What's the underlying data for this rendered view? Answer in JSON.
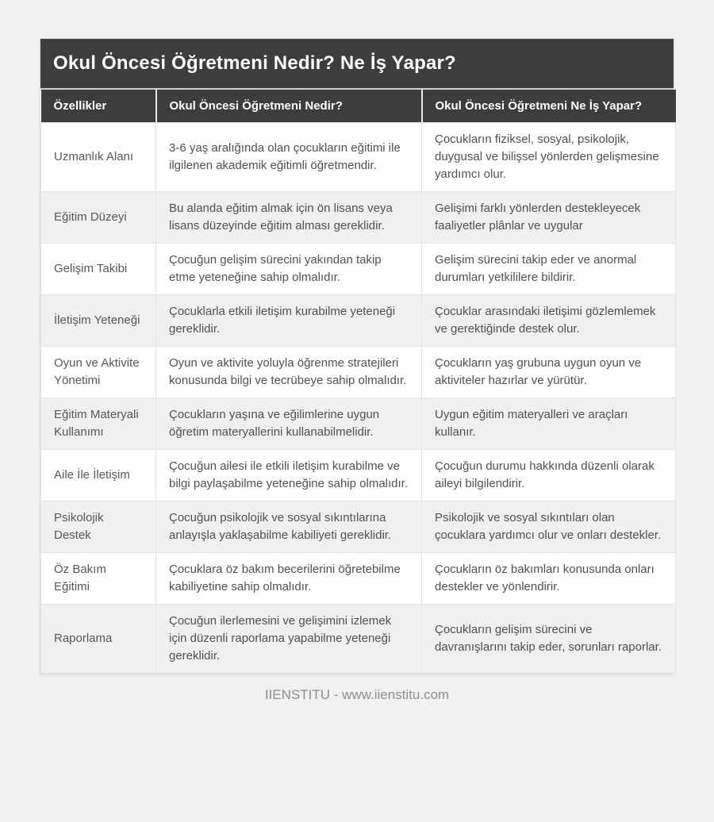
{
  "page": {
    "title": "Okul Öncesi Öğretmeni Nedir? Ne İş Yapar?",
    "footer": "IIENSTITU - www.iienstitu.com"
  },
  "colors": {
    "header_bg": "#3d3d3d",
    "header_text": "#ffffff",
    "row_alt_bg": "#f0f0ee",
    "page_bg": "#f1f1ef",
    "body_text": "#4f5053",
    "border": "#e3e3e1",
    "footer_text": "#8f8f8d"
  },
  "table": {
    "headers": [
      "Özellikler",
      "Okul Öncesi Öğretmeni Nedir?",
      "Okul Öncesi Öğretmeni Ne İş Yapar?"
    ],
    "rows": [
      {
        "feature": "Uzmanlık Alanı",
        "nedir": "3-6 yaş aralığında olan çocukların eğitimi ile ilgilenen akademik eğitimli öğretmendir.",
        "yapar": "Çocukların fiziksel, sosyal, psikolojik, duygusal ve bilişsel yönlerden gelişmesine yardımcı olur."
      },
      {
        "feature": "Eğitim Düzeyi",
        "nedir": "Bu alanda eğitim almak için ön lisans veya lisans düzeyinde eğitim alması gereklidir.",
        "yapar": "Gelişimi farklı yönlerden destekleyecek faaliyetler plânlar ve uygular"
      },
      {
        "feature": "Gelişim Takibi",
        "nedir": "Çocuğun gelişim sürecini yakından takip etme yeteneğine sahip olmalıdır.",
        "yapar": "Gelişim sürecini takip eder ve anormal durumları yetkililere bildirir."
      },
      {
        "feature": "İletişim Yeteneği",
        "nedir": "Çocuklarla etkili iletişim kurabilme yeteneği gereklidir.",
        "yapar": "Çocuklar arasındaki iletişimi gözlemlemek ve gerektiğinde destek olur."
      },
      {
        "feature": "Oyun ve Aktivite Yönetimi",
        "nedir": "Oyun ve aktivite yoluyla öğrenme stratejileri konusunda bilgi ve tecrübeye sahip olmalıdır.",
        "yapar": "Çocukların yaş grubuna uygun oyun ve aktiviteler hazırlar ve yürütür."
      },
      {
        "feature": "Eğitim Materyali Kullanımı",
        "nedir": "Çocukların yaşına ve eğilimlerine uygun öğretim materyallerini kullanabilmelidir.",
        "yapar": "Uygun eğitim materyalleri ve araçları kullanır."
      },
      {
        "feature": "Aile İle İletişim",
        "nedir": "Çocuğun ailesi ile etkili iletişim kurabilme ve bilgi paylaşabilme yeteneğine sahip olmalıdır.",
        "yapar": "Çocuğun durumu hakkında düzenli olarak aileyi bilgilendirir."
      },
      {
        "feature": "Psikolojik Destek",
        "nedir": "Çocuğun psikolojik ve sosyal sıkıntılarına anlayışla yaklaşabilme kabiliyeti gereklidir.",
        "yapar": "Psikolojik ve sosyal sıkıntıları olan çocuklara yardımcı olur ve onları destekler."
      },
      {
        "feature": "Öz Bakım Eğitimi",
        "nedir": "Çocuklara öz bakım becerilerini öğretebilme kabiliyetine sahip olmalıdır.",
        "yapar": "Çocukların öz bakımları konusunda onları destekler ve yönlendirir."
      },
      {
        "feature": "Raporlama",
        "nedir": "Çocuğun ilerlemesini ve gelişimini izlemek için düzenli raporlama yapabilme yeteneği gereklidir.",
        "yapar": "Çocukların gelişim sürecini ve davranışlarını takip eder, sorunları raporlar."
      }
    ]
  }
}
